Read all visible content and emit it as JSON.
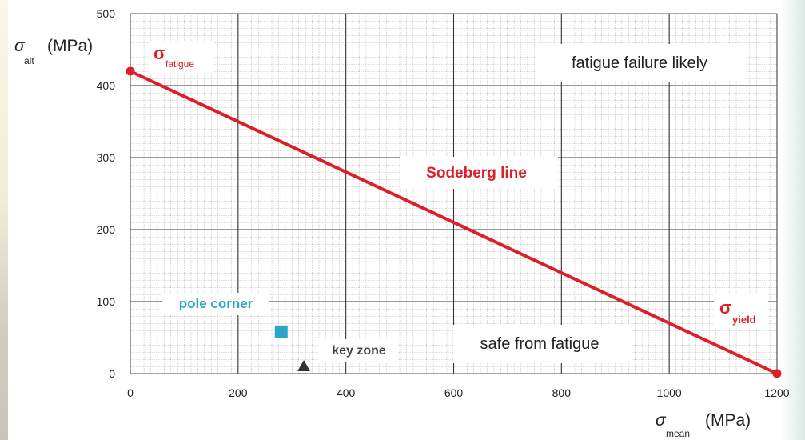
{
  "chart_data": {
    "type": "line",
    "x_ticks": [
      "0",
      "200",
      "400",
      "600",
      "800",
      "1000",
      "1200"
    ],
    "y_ticks": [
      "0",
      "100",
      "200",
      "300",
      "400",
      "500"
    ],
    "xlim": [
      0,
      1200
    ],
    "ylim": [
      0,
      500
    ],
    "grid": true,
    "x_axis_label": {
      "symbol": "σ",
      "subscript": "mean",
      "unit": "(MPa)"
    },
    "y_axis_label": {
      "symbol": "σ",
      "subscript": "alt",
      "unit": "(MPa)"
    },
    "series": [
      {
        "name": "Sodeberg line",
        "color": "#dd2027",
        "x": [
          0,
          1200
        ],
        "y": [
          420,
          0
        ]
      }
    ],
    "endpoint_labels": {
      "fatigue": {
        "symbol": "σ",
        "subscript": "fatigue"
      },
      "yield": {
        "symbol": "σ",
        "subscript": "yield"
      }
    },
    "region_labels": {
      "failure": "fatigue failure likely",
      "safe": "safe from fatigue"
    },
    "markers": [
      {
        "label": "pole corner",
        "shape": "square",
        "color": "#2aa6c6",
        "x": 280,
        "y": 58
      },
      {
        "label": "key zone",
        "shape": "triangle",
        "color": "#333333",
        "x": 322,
        "y": 10
      }
    ]
  }
}
